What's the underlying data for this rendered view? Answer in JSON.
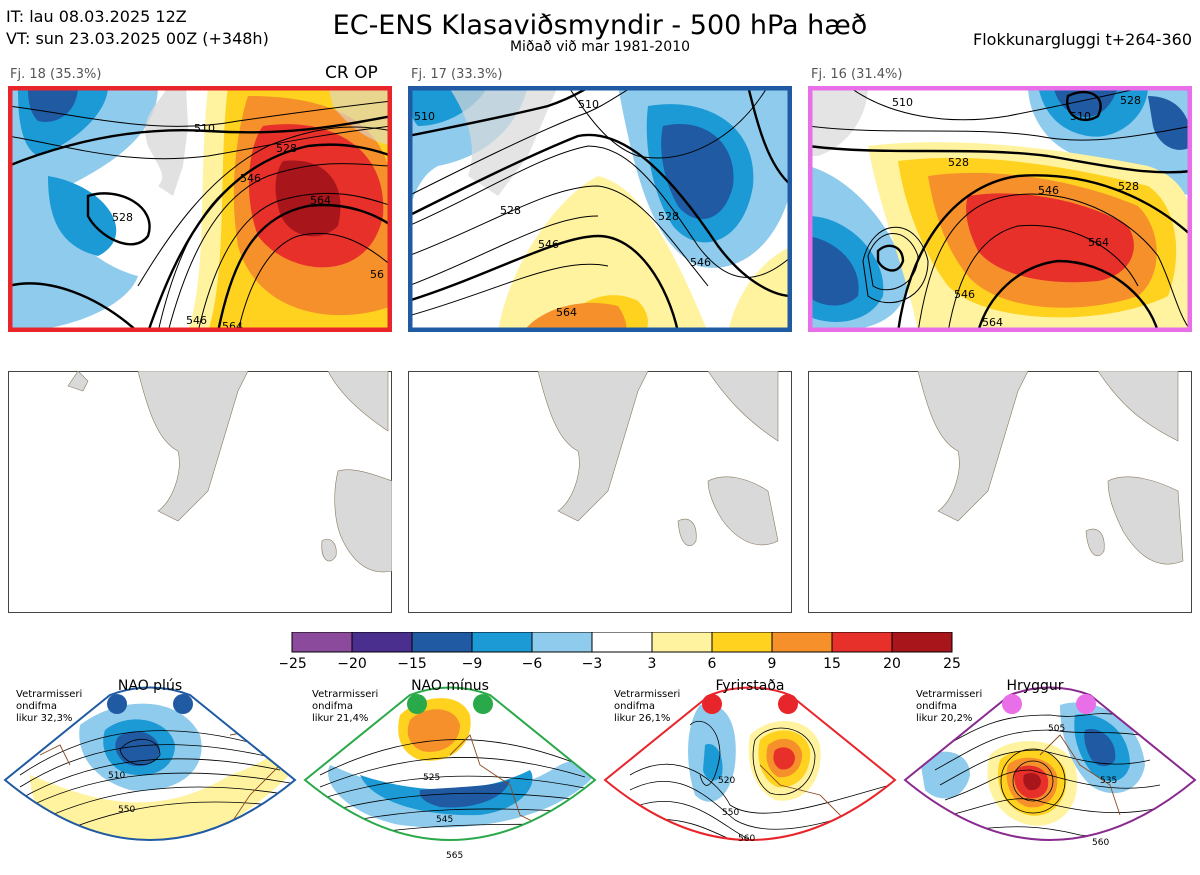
{
  "header": {
    "it_line": "IT: lau 08.03.2025 12Z",
    "vt_line": "VT: sun 23.03.2025 00Z  (+348h)",
    "title": "EC-ENS Klasaviðsmyndir - 500 hPa hæð",
    "subtitle": "Miðað við mar 1981-2010",
    "window": "Flokkunargluggi t+264-360"
  },
  "clusters": [
    {
      "label": "Fj. 18 (35.3%)",
      "tag": "CR OP",
      "border": "#e8252b",
      "contours": [
        "510",
        "528",
        "528",
        "546",
        "564",
        "56",
        "546",
        "564"
      ]
    },
    {
      "label": "Fj. 17 (33.3%)",
      "tag": "",
      "border": "#1f5aa3",
      "contours": [
        "510",
        "510",
        "528",
        "546",
        "528",
        "546",
        "564"
      ]
    },
    {
      "label": "Fj. 16 (31.4%)",
      "tag": "",
      "border": "#e86fe8",
      "contours": [
        "510",
        "510",
        "528",
        "528",
        "546",
        "564",
        "546",
        "564",
        "528"
      ]
    }
  ],
  "colorbar": {
    "ticks": [
      "−25",
      "−20",
      "−15",
      "−9",
      "−6",
      "−3",
      "3",
      "6",
      "9",
      "15",
      "20",
      "25"
    ],
    "colors": [
      "#8c4a9c",
      "#4a2f8f",
      "#1f5aa3",
      "#1b9ad6",
      "#8fcbec",
      "#ffffff",
      "#fff3a0",
      "#ffd21f",
      "#f5902b",
      "#e8302b",
      "#a8151b"
    ]
  },
  "regimes": [
    {
      "name": "NAO plús",
      "note": [
        "Vetrarmisseri",
        "ondifma",
        "likur 32,3%"
      ],
      "border": "#1f5aa3",
      "dot": "#1f5aa3",
      "contours": [
        "510",
        "550"
      ]
    },
    {
      "name": "NAO mínus",
      "note": [
        "Vetrarmisseri",
        "ondifma",
        "likur 21,4%"
      ],
      "border": "#2aa94a",
      "dot": "#2aa94a",
      "contours": [
        "525",
        "545",
        "565"
      ]
    },
    {
      "name": "Fyrirstaða",
      "note": [
        "Vetrarmisseri",
        "ondifma",
        "likur 26,1%"
      ],
      "border": "#e8252b",
      "dot": "#e8252b",
      "contours": [
        "520",
        "550",
        "560"
      ]
    },
    {
      "name": "Hryggur",
      "note": [
        "Vetrarmisseri",
        "ondifma",
        "likur 20,2%"
      ],
      "border": "#8a2a8f",
      "dot": "#e86fe8",
      "contours": [
        "505",
        "535",
        "560"
      ]
    }
  ]
}
